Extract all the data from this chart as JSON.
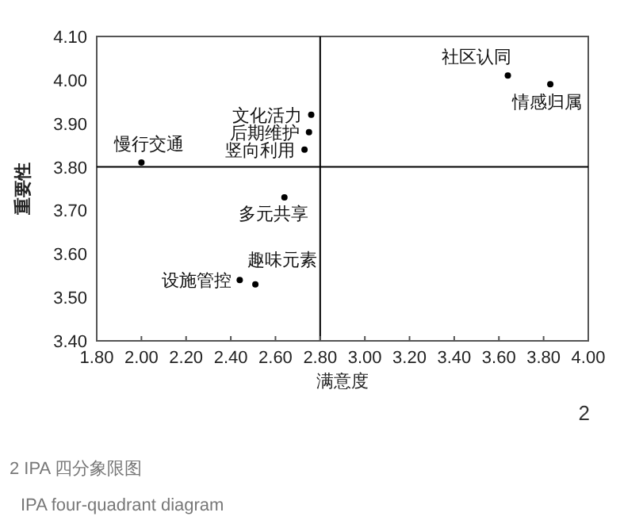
{
  "chart_data": {
    "type": "scatter",
    "xlabel": "满意度",
    "ylabel": "重要性",
    "x": [
      2.0,
      2.76,
      2.75,
      2.73,
      3.64,
      3.83,
      2.64,
      2.44,
      2.51
    ],
    "series": [
      {
        "color": "#000000",
        "marker": "circle",
        "values": [
          3.81,
          3.92,
          3.88,
          3.84,
          4.01,
          3.99,
          3.73,
          3.54,
          3.53
        ]
      }
    ],
    "xlim": [
      1.8,
      4.0
    ],
    "ylim": [
      3.4,
      4.1
    ],
    "xticks": [
      {
        "value": 1.8,
        "label": "1.80"
      },
      {
        "value": 2.0,
        "label": "2.00"
      },
      {
        "value": 2.2,
        "label": "2.20"
      },
      {
        "value": 2.4,
        "label": "2.40"
      },
      {
        "value": 2.6,
        "label": "2.60"
      },
      {
        "value": 2.8,
        "label": "2.80"
      },
      {
        "value": 3.0,
        "label": "3.00"
      },
      {
        "value": 3.2,
        "label": "3.20"
      },
      {
        "value": 3.4,
        "label": "3.40"
      },
      {
        "value": 3.6,
        "label": "3.60"
      },
      {
        "value": 3.8,
        "label": "3.80"
      },
      {
        "value": 4.0,
        "label": "4.00"
      }
    ],
    "yticks": [
      {
        "value": 3.4,
        "label": "3.40"
      },
      {
        "value": 3.5,
        "label": "3.50"
      },
      {
        "value": 3.6,
        "label": "3.60"
      },
      {
        "value": 3.7,
        "label": "3.70"
      },
      {
        "value": 3.8,
        "label": "3.80"
      },
      {
        "value": 3.9,
        "label": "3.90"
      },
      {
        "value": 4.0,
        "label": "4.00"
      },
      {
        "value": 4.1,
        "label": "4.10"
      }
    ],
    "ref_lines": [
      {
        "axis": "x",
        "value": 2.8,
        "color": "#000000"
      },
      {
        "axis": "y",
        "value": 3.8,
        "color": "#000000"
      }
    ],
    "grid": false,
    "annotations": [
      {
        "text": "慢行交通",
        "x": 2.0,
        "y": 3.81
      },
      {
        "text": "文化活力",
        "x": 2.76,
        "y": 3.92
      },
      {
        "text": "后期维护",
        "x": 2.75,
        "y": 3.88
      },
      {
        "text": "竖向利用",
        "x": 2.73,
        "y": 3.84
      },
      {
        "text": "社区认同",
        "x": 3.64,
        "y": 4.01
      },
      {
        "text": "情感归属",
        "x": 3.83,
        "y": 3.99
      },
      {
        "text": "多元共享",
        "x": 2.64,
        "y": 3.73
      },
      {
        "text": "设施管控",
        "x": 2.44,
        "y": 3.54
      },
      {
        "text": "趣味元素",
        "x": 2.51,
        "y": 3.53
      },
      "2",
      "2 IPA 四分象限图",
      "IPA four-quadrant diagram"
    ]
  }
}
